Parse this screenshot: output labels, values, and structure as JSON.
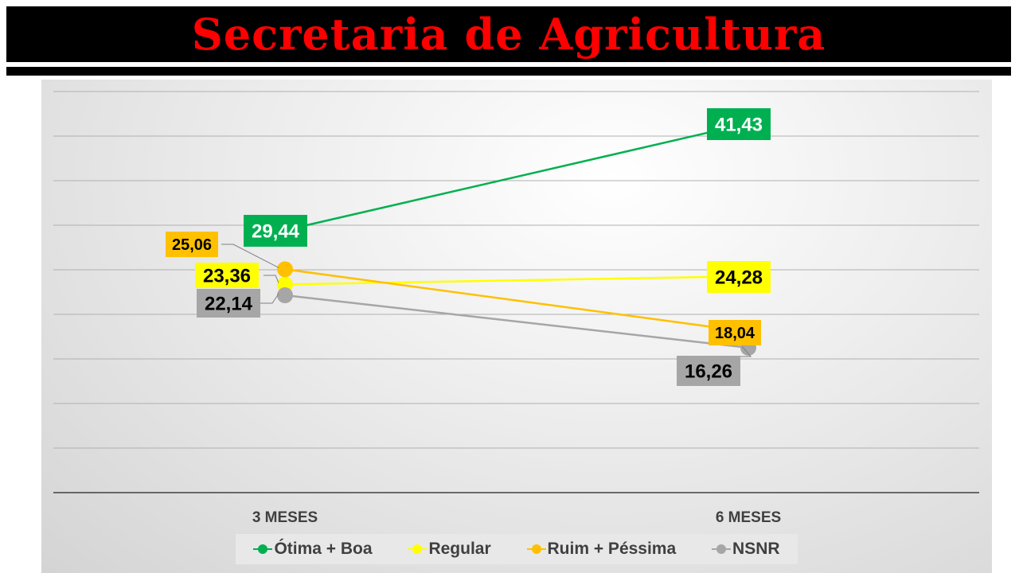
{
  "header": {
    "title": "Secretaria de Agricultura"
  },
  "chart_data": {
    "type": "line",
    "categories": [
      "3 MESES",
      "6 MESES"
    ],
    "ylim": [
      0,
      45
    ],
    "y_step": 5,
    "grid": true,
    "legend": "bottom",
    "series": [
      {
        "name": "Ótima + Boa",
        "values": [
          29.44,
          41.43
        ],
        "labels": [
          "29,44",
          "41,43"
        ],
        "color": "#00b050",
        "label_text_color": "#ffffff"
      },
      {
        "name": "Regular",
        "values": [
          23.36,
          24.28
        ],
        "labels": [
          "23,36",
          "24,28"
        ],
        "color": "#ffff00",
        "label_text_color": "#000000"
      },
      {
        "name": "Ruim + Péssima",
        "values": [
          25.06,
          18.04
        ],
        "labels": [
          "25,06",
          "18,04"
        ],
        "color": "#ffc000",
        "label_text_color": "#000000"
      },
      {
        "name": "NSNR",
        "values": [
          22.14,
          16.26
        ],
        "labels": [
          "22,14",
          "16,26"
        ],
        "color": "#a6a6a6",
        "label_text_color": "#000000"
      }
    ]
  }
}
